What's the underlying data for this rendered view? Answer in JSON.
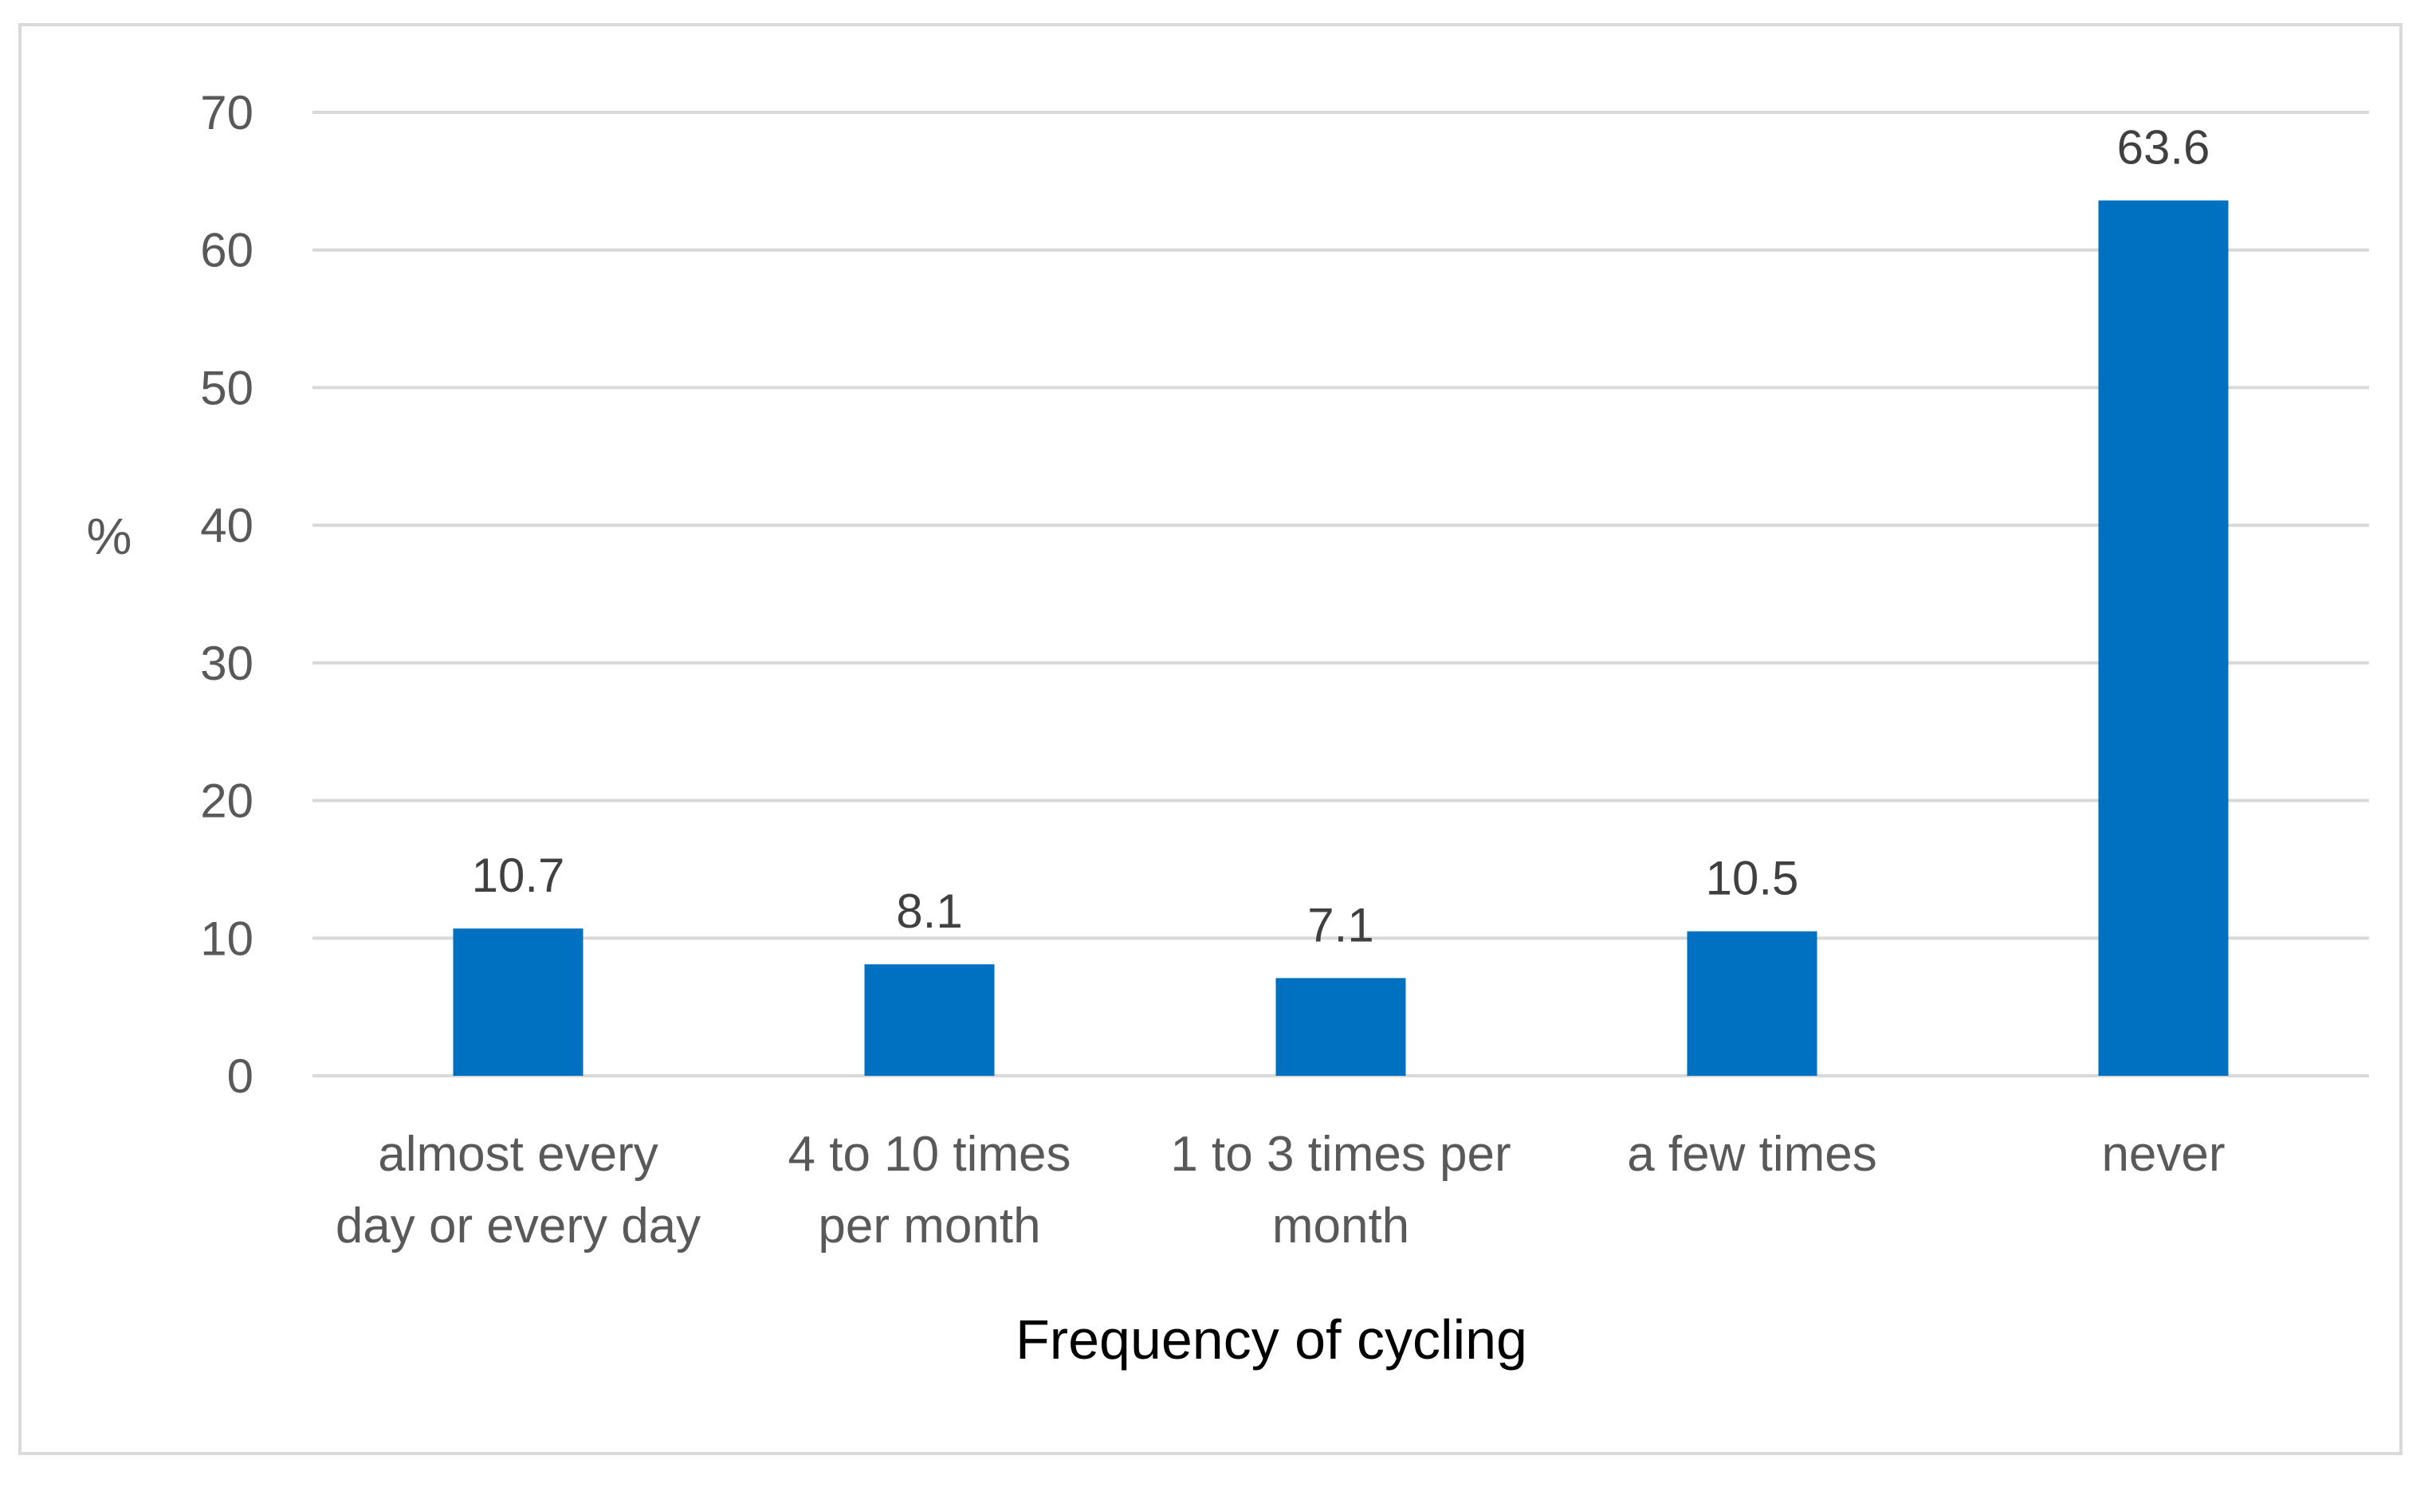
{
  "chart_data": {
    "type": "bar",
    "title": "",
    "xlabel": "Frequency of cycling",
    "ylabel": "%",
    "ylim": [
      0,
      70
    ],
    "yticks": [
      0,
      10,
      20,
      30,
      40,
      50,
      60,
      70
    ],
    "grid": true,
    "legend": "none",
    "categories": [
      [
        "almost every",
        "day or every day"
      ],
      [
        "4 to 10 times",
        "per month"
      ],
      [
        "1 to 3 times per",
        "month"
      ],
      [
        "a few times"
      ],
      [
        "never"
      ]
    ],
    "values": [
      10.7,
      8.1,
      7.1,
      10.5,
      63.6
    ],
    "data_labels": [
      "10.7",
      "8.1",
      "7.1",
      "10.5",
      "63.6"
    ],
    "colors": {
      "bar": "#0070c0",
      "grid": "#d9d9d9",
      "frame": "#d9d9d9"
    }
  }
}
